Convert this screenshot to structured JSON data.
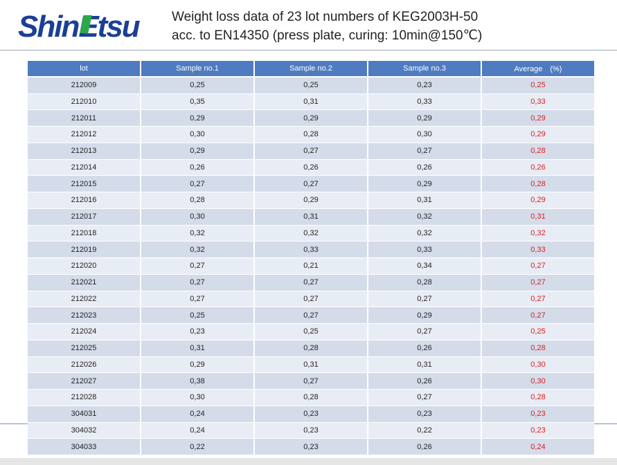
{
  "header": {
    "logo": "ShinEtsu",
    "title_line1": "Weight loss data of 23 lot numbers  of KEG2003H-50",
    "title_line2": "acc. to EN14350 (press plate, curing:  10min@150℃)"
  },
  "table": {
    "columns": [
      "lot",
      "Sample no.1",
      "Sample no.2",
      "Sample no.3",
      "Average　(%)"
    ],
    "rows": [
      [
        "212009",
        "0,25",
        "0,25",
        "0,23",
        "0,25"
      ],
      [
        "212010",
        "0,35",
        "0,31",
        "0,33",
        "0,33"
      ],
      [
        "212011",
        "0,29",
        "0,29",
        "0,29",
        "0,29"
      ],
      [
        "212012",
        "0,30",
        "0,28",
        "0,30",
        "0,29"
      ],
      [
        "212013",
        "0,29",
        "0,27",
        "0,27",
        "0,28"
      ],
      [
        "212014",
        "0,26",
        "0,26",
        "0,26",
        "0,26"
      ],
      [
        "212015",
        "0,27",
        "0,27",
        "0,29",
        "0,28"
      ],
      [
        "212016",
        "0,28",
        "0,29",
        "0,31",
        "0,29"
      ],
      [
        "212017",
        "0,30",
        "0,31",
        "0,32",
        "0,31"
      ],
      [
        "212018",
        "0,32",
        "0,32",
        "0,32",
        "0,32"
      ],
      [
        "212019",
        "0,32",
        "0,33",
        "0,33",
        "0,33"
      ],
      [
        "212020",
        "0,27",
        "0,21",
        "0,34",
        "0,27"
      ],
      [
        "212021",
        "0,27",
        "0,27",
        "0,28",
        "0,27"
      ],
      [
        "212022",
        "0,27",
        "0,27",
        "0,27",
        "0,27"
      ],
      [
        "212023",
        "0,25",
        "0,27",
        "0,29",
        "0,27"
      ],
      [
        "212024",
        "0,23",
        "0,25",
        "0,27",
        "0,25"
      ],
      [
        "212025",
        "0,31",
        "0,28",
        "0,26",
        "0,28"
      ],
      [
        "212026",
        "0,29",
        "0,31",
        "0,31",
        "0,30"
      ],
      [
        "212027",
        "0,38",
        "0,27",
        "0,26",
        "0,30"
      ],
      [
        "212028",
        "0,30",
        "0,28",
        "0,27",
        "0,28"
      ],
      [
        "304031",
        "0,24",
        "0,23",
        "0,23",
        "0,23"
      ],
      [
        "304032",
        "0,24",
        "0,23",
        "0,22",
        "0,23"
      ],
      [
        "304033",
        "0,22",
        "0,23",
        "0,26",
        "0,24"
      ]
    ]
  }
}
